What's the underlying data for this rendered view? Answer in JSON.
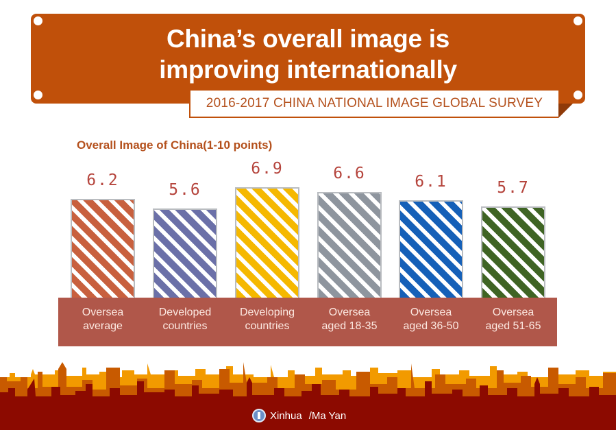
{
  "header": {
    "title_line1": "China’s overall image is",
    "title_line2": "improving internationally",
    "subtitle": "2016-2017 CHINA NATIONAL IMAGE GLOBAL SURVEY"
  },
  "colors": {
    "banner": "#c0500a",
    "label_band": "#b0574a",
    "value_text": "#b5443c",
    "bars": [
      "#c8603e",
      "#6b70a8",
      "#f5b800",
      "#8e959e",
      "#1560b8",
      "#3f6424"
    ]
  },
  "chart_data": {
    "type": "bar",
    "title": "Overall Image of China(1-10 points)",
    "categories": [
      "Oversea average",
      "Developed countries",
      "Developing countries",
      "Oversea aged 18-35",
      "Oversea aged 36-50",
      "Oversea aged 51-65"
    ],
    "values": [
      6.2,
      5.6,
      6.9,
      6.6,
      6.1,
      5.7
    ],
    "xlabel": "",
    "ylabel": "",
    "ylim": [
      1,
      10
    ],
    "grid": false,
    "legend": "none"
  },
  "bars": [
    {
      "value": "6.2",
      "line1": "Oversea",
      "line2": "average"
    },
    {
      "value": "5.6",
      "line1": "Developed",
      "line2": "countries"
    },
    {
      "value": "6.9",
      "line1": "Developing",
      "line2": "countries"
    },
    {
      "value": "6.6",
      "line1": "Oversea",
      "line2": "aged 18-35"
    },
    {
      "value": "6.1",
      "line1": "Oversea",
      "line2": "aged 36-50"
    },
    {
      "value": "5.7",
      "line1": "Oversea",
      "line2": "aged 51-65"
    }
  ],
  "footer": {
    "credit": "Xinhua",
    "author": "/Ma Yan"
  }
}
